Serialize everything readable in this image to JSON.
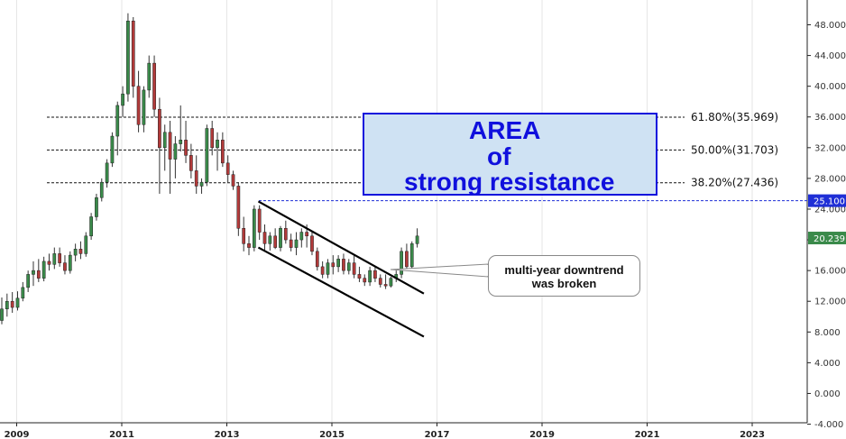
{
  "chart_data": {
    "type": "candlestick",
    "x_axis": {
      "tick_labels": [
        "2009",
        "2011",
        "2013",
        "2015",
        "2017",
        "2019",
        "2021",
        "2023"
      ]
    },
    "y_axis": {
      "ylim": [
        -4,
        50
      ],
      "tick_labels": [
        "48.000",
        "44.000",
        "40.000",
        "36.000",
        "32.000",
        "28.000",
        "24.000",
        "20.000",
        "16.000",
        "12.000",
        "8.000",
        "4.000",
        "0.000",
        "-4.000"
      ],
      "price_tags": [
        {
          "label": "25.100",
          "value": 25.1,
          "color": "#1f2fd6"
        },
        {
          "label": "20.239",
          "value": 20.239,
          "color": "#3a8a4a"
        }
      ]
    },
    "fibonacci_levels": [
      {
        "label": "61.80%(35.969)",
        "value": 35.969
      },
      {
        "label": "50.00%(31.703)",
        "value": 31.703
      },
      {
        "label": "38.20%(27.436)",
        "value": 27.436
      }
    ],
    "resistance_line": {
      "value": 25.1,
      "color": "#1f2fd6"
    },
    "annotations": {
      "area_box": {
        "lines": [
          "AREA",
          "of",
          "strong resistance"
        ],
        "color": "#1010dd",
        "fill": "#cfe2f3"
      },
      "callout": {
        "lines": [
          "multi-year downtrend",
          "was broken"
        ]
      }
    },
    "channel": {
      "upper": {
        "from": {
          "date": "2013.6",
          "value": 25
        },
        "to": {
          "date": "2016.75",
          "value": 13
        }
      },
      "lower": {
        "from": {
          "date": "2013.6",
          "value": 19
        },
        "to": {
          "date": "2016.75",
          "value": 7.4
        }
      }
    },
    "colors": {
      "up": "#3a8a4a",
      "down": "#b23a3a",
      "wick": "#333333"
    },
    "candles": [
      [
        9.5,
        12.5,
        9.0,
        11.0
      ],
      [
        11.0,
        13.0,
        10.0,
        12.0
      ],
      [
        12.0,
        13.2,
        10.5,
        11.2
      ],
      [
        11.2,
        13.3,
        10.8,
        12.4
      ],
      [
        12.4,
        14.5,
        12.0,
        13.8
      ],
      [
        13.8,
        16.0,
        13.2,
        15.5
      ],
      [
        15.5,
        17.2,
        14.0,
        16.0
      ],
      [
        16.0,
        17.5,
        14.5,
        15.0
      ],
      [
        15.0,
        17.8,
        14.6,
        17.2
      ],
      [
        17.2,
        18.2,
        16.0,
        16.8
      ],
      [
        16.8,
        19.0,
        16.2,
        18.2
      ],
      [
        18.2,
        19.0,
        16.5,
        17.0
      ],
      [
        17.0,
        18.0,
        15.5,
        16.0
      ],
      [
        16.0,
        18.5,
        15.6,
        18.0
      ],
      [
        18.0,
        19.5,
        17.2,
        18.8
      ],
      [
        18.8,
        19.8,
        17.5,
        18.2
      ],
      [
        18.2,
        21.0,
        17.8,
        20.5
      ],
      [
        20.5,
        23.5,
        20.0,
        23.0
      ],
      [
        23.0,
        26.0,
        22.5,
        25.5
      ],
      [
        25.5,
        28.0,
        25.0,
        27.5
      ],
      [
        27.5,
        30.5,
        26.8,
        30.0
      ],
      [
        30.0,
        34.0,
        29.5,
        33.5
      ],
      [
        33.5,
        38.0,
        31.0,
        37.5
      ],
      [
        37.5,
        40.0,
        36.0,
        39.0
      ],
      [
        39.0,
        49.5,
        38.0,
        48.5
      ],
      [
        48.5,
        49.0,
        38.5,
        40.0
      ],
      [
        40.0,
        42.0,
        34.0,
        35.0
      ],
      [
        35.0,
        40.0,
        34.0,
        39.5
      ],
      [
        39.5,
        44.0,
        38.5,
        43.0
      ],
      [
        43.0,
        44.0,
        36.0,
        37.0
      ],
      [
        37.0,
        38.5,
        26.0,
        32.0
      ],
      [
        32.0,
        35.0,
        29.0,
        34.0
      ],
      [
        34.0,
        35.5,
        26.0,
        30.5
      ],
      [
        30.5,
        33.5,
        28.0,
        32.5
      ],
      [
        32.5,
        37.5,
        31.5,
        33.0
      ],
      [
        33.0,
        35.5,
        30.0,
        31.0
      ],
      [
        31.0,
        32.5,
        28.0,
        29.0
      ],
      [
        29.0,
        31.0,
        26.0,
        27.0
      ],
      [
        27.0,
        28.0,
        26.0,
        27.5
      ],
      [
        27.5,
        35.0,
        27.0,
        34.5
      ],
      [
        34.5,
        35.5,
        31.0,
        32.0
      ],
      [
        32.0,
        34.0,
        29.0,
        33.0
      ],
      [
        33.0,
        34.0,
        29.5,
        30.0
      ],
      [
        30.0,
        31.0,
        27.5,
        28.5
      ],
      [
        28.5,
        29.0,
        26.5,
        27.0
      ],
      [
        27.0,
        27.5,
        20.5,
        21.5
      ],
      [
        21.5,
        23.0,
        18.5,
        19.5
      ],
      [
        19.5,
        20.5,
        18.0,
        19.0
      ],
      [
        19.0,
        24.5,
        18.5,
        24.0
      ],
      [
        24.0,
        24.5,
        20.0,
        21.0
      ],
      [
        21.0,
        22.0,
        18.5,
        19.5
      ],
      [
        19.5,
        21.0,
        18.6,
        20.5
      ],
      [
        20.5,
        21.5,
        18.8,
        19.0
      ],
      [
        19.0,
        21.8,
        18.5,
        21.5
      ],
      [
        21.5,
        22.5,
        19.5,
        20.0
      ],
      [
        20.0,
        20.8,
        18.5,
        19.0
      ],
      [
        19.0,
        21.0,
        18.0,
        20.0
      ],
      [
        20.0,
        21.5,
        19.0,
        21.0
      ],
      [
        21.0,
        22.0,
        19.0,
        20.5
      ],
      [
        20.5,
        21.0,
        18.0,
        18.5
      ],
      [
        18.5,
        19.0,
        16.0,
        16.5
      ],
      [
        16.5,
        17.2,
        15.0,
        15.5
      ],
      [
        15.5,
        17.5,
        15.0,
        17.0
      ],
      [
        17.0,
        18.0,
        15.5,
        16.5
      ],
      [
        16.5,
        18.0,
        15.8,
        17.5
      ],
      [
        17.5,
        18.2,
        15.5,
        16.0
      ],
      [
        16.0,
        17.5,
        15.5,
        17.0
      ],
      [
        17.0,
        18.0,
        15.0,
        15.5
      ],
      [
        15.5,
        16.5,
        14.5,
        15.0
      ],
      [
        15.0,
        15.5,
        14.0,
        14.5
      ],
      [
        14.5,
        16.5,
        14.0,
        16.0
      ],
      [
        16.0,
        16.5,
        14.5,
        15.0
      ],
      [
        15.0,
        15.5,
        13.8,
        14.2
      ],
      [
        14.2,
        15.5,
        13.6,
        14.0
      ],
      [
        14.0,
        15.2,
        13.8,
        15.0
      ],
      [
        15.0,
        16.0,
        14.5,
        15.5
      ],
      [
        15.5,
        19.0,
        15.0,
        18.5
      ],
      [
        18.5,
        19.5,
        16.0,
        16.5
      ],
      [
        16.5,
        19.8,
        16.2,
        19.5
      ],
      [
        19.5,
        21.5,
        19.0,
        20.5
      ]
    ]
  }
}
